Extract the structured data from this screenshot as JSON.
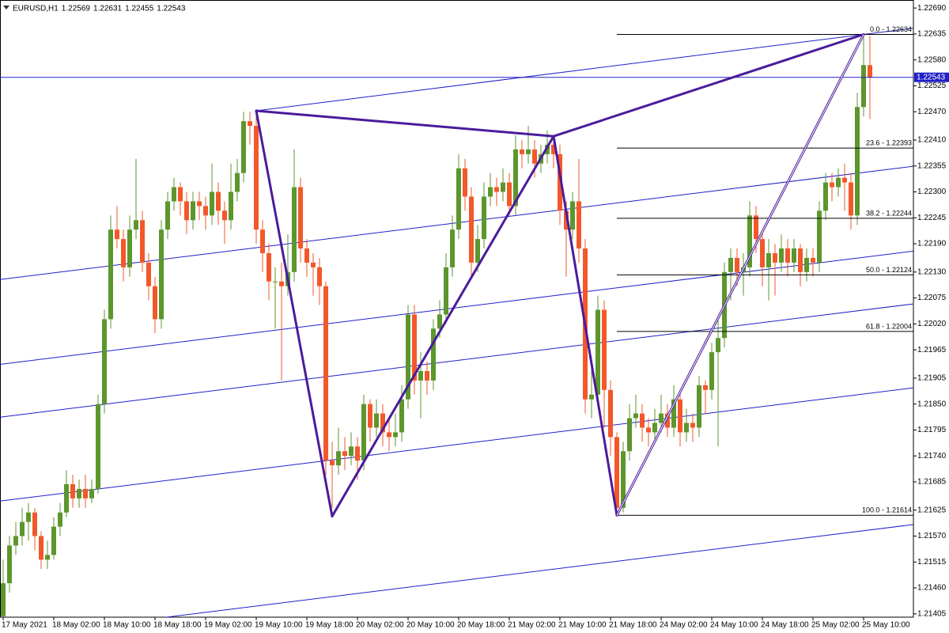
{
  "chart_data": {
    "type": "candlestick",
    "symbol": "EURUSD,H1",
    "colors": {
      "up": "#5c962c",
      "down": "#f2582a",
      "pattern": "#4b1b9c",
      "channel": "#2020c8",
      "price_line": "#2020c8",
      "fibonacci": "#000000"
    },
    "ylim": [
      1.21398,
      1.22707
    ],
    "yticks": [
      {
        "value": 1.2269,
        "label": "1.22690"
      },
      1.22635,
      {
        "value": 1.2258,
        "label": "1.22580"
      },
      1.22525,
      {
        "value": 1.2247,
        "label": "1.22470"
      },
      {
        "value": 1.2241,
        "label": "1.22410"
      },
      1.22355,
      {
        "value": 1.223,
        "label": "1.22300"
      },
      1.22245,
      {
        "value": 1.2219,
        "label": "1.22190"
      },
      {
        "value": 1.2213,
        "label": "1.22130"
      },
      1.22075,
      {
        "value": 1.2202,
        "label": "1.22020"
      },
      1.21965,
      1.21905,
      {
        "value": 1.2185,
        "label": "1.21850"
      },
      1.21795,
      {
        "value": 1.2174,
        "label": "1.21740"
      },
      1.21685,
      1.21625,
      {
        "value": 1.2157,
        "label": "1.21570"
      },
      1.21515,
      {
        "value": 1.2146,
        "label": "1.21460"
      },
      1.21405
    ],
    "xlim": [
      -0.5,
      143.875
    ],
    "xticks": [
      {
        "value": 0,
        "label": "17 May 2021"
      },
      {
        "value": 8,
        "label": "18 May 02:00"
      },
      {
        "value": 16,
        "label": "18 May 10:00"
      },
      {
        "value": 24,
        "label": "18 May 18:00"
      },
      {
        "value": 32,
        "label": "19 May 02:00"
      },
      {
        "value": 40,
        "label": "19 May 10:00"
      },
      {
        "value": 48,
        "label": "19 May 18:00"
      },
      {
        "value": 56,
        "label": "20 May 02:00"
      },
      {
        "value": 64,
        "label": "20 May 10:00"
      },
      {
        "value": 72,
        "label": "20 May 18:00"
      },
      {
        "value": 80,
        "label": "21 May 02:00"
      },
      {
        "value": 88,
        "label": "21 May 10:00"
      },
      {
        "value": 96,
        "label": "21 May 18:00"
      },
      {
        "value": 104,
        "label": "24 May 02:00"
      },
      {
        "value": 112,
        "label": "24 May 10:00"
      },
      {
        "value": 120,
        "label": "24 May 18:00"
      },
      {
        "value": 128,
        "label": "25 May 02:00"
      },
      {
        "value": 136,
        "label": "25 May 10:00"
      }
    ],
    "candles": [
      [
        1.214,
        1.2152,
        1.2138,
        1.2147
      ],
      [
        1.2147,
        1.2157,
        1.2145,
        1.2155
      ],
      [
        1.2155,
        1.216,
        1.2153,
        1.2157
      ],
      [
        1.2157,
        1.2163,
        1.2155,
        1.216
      ],
      [
        1.216,
        1.2164,
        1.2156,
        1.2162
      ],
      [
        1.2162,
        1.2163,
        1.2154,
        1.2157
      ],
      [
        1.2157,
        1.2158,
        1.215,
        1.2152
      ],
      [
        1.2152,
        1.2156,
        1.215,
        1.2153
      ],
      [
        1.2153,
        1.2161,
        1.2152,
        1.2159
      ],
      [
        1.2159,
        1.2164,
        1.2157,
        1.2162
      ],
      [
        1.2162,
        1.2171,
        1.2161,
        1.2168
      ],
      [
        1.2168,
        1.217,
        1.2163,
        1.2165
      ],
      [
        1.2165,
        1.2169,
        1.2163,
        1.2167
      ],
      [
        1.2167,
        1.217,
        1.2163,
        1.2165
      ],
      [
        1.2165,
        1.2169,
        1.2164,
        1.2167
      ],
      [
        1.2167,
        1.2187,
        1.2166,
        1.2185
      ],
      [
        1.2185,
        1.2205,
        1.2183,
        1.2203
      ],
      [
        1.2203,
        1.2225,
        1.2201,
        1.2222
      ],
      [
        1.2222,
        1.2227,
        1.2218,
        1.222
      ],
      [
        1.222,
        1.2222,
        1.2211,
        1.2214
      ],
      [
        1.2214,
        1.2225,
        1.2212,
        1.2222
      ],
      [
        1.2222,
        1.2237,
        1.222,
        1.2224
      ],
      [
        1.2224,
        1.2226,
        1.2213,
        1.2215
      ],
      [
        1.2215,
        1.2217,
        1.2207,
        1.221
      ],
      [
        1.221,
        1.2212,
        1.22,
        1.2203
      ],
      [
        1.2203,
        1.2224,
        1.2201,
        1.2222
      ],
      [
        1.2222,
        1.223,
        1.222,
        1.2228
      ],
      [
        1.2228,
        1.2233,
        1.2226,
        1.2231
      ],
      [
        1.2231,
        1.2232,
        1.2225,
        1.2228
      ],
      [
        1.2228,
        1.223,
        1.2221,
        1.2224
      ],
      [
        1.2224,
        1.223,
        1.2222,
        1.2228
      ],
      [
        1.2228,
        1.223,
        1.2224,
        1.2227
      ],
      [
        1.2227,
        1.2229,
        1.2222,
        1.2225
      ],
      [
        1.2225,
        1.2236,
        1.2223,
        1.223
      ],
      [
        1.223,
        1.2232,
        1.2223,
        1.2226
      ],
      [
        1.2226,
        1.2228,
        1.2219,
        1.2224
      ],
      [
        1.2224,
        1.2236,
        1.2222,
        1.223
      ],
      [
        1.223,
        1.2237,
        1.2228,
        1.2234
      ],
      [
        1.2234,
        1.2247,
        1.2232,
        1.2245
      ],
      [
        1.2245,
        1.2247,
        1.224,
        1.2244
      ],
      [
        1.2244,
        1.2247,
        1.2219,
        1.2222
      ],
      [
        1.2222,
        1.2224,
        1.2213,
        1.2217
      ],
      [
        1.2217,
        1.2219,
        1.2207,
        1.2211
      ],
      [
        1.2211,
        1.2214,
        1.2201,
        1.2211
      ],
      [
        1.2211,
        1.2215,
        1.219,
        1.221
      ],
      [
        1.221,
        1.2221,
        1.2208,
        1.2213
      ],
      [
        1.2213,
        1.2239,
        1.2211,
        1.2231
      ],
      [
        1.2231,
        1.2233,
        1.2215,
        1.2218
      ],
      [
        1.2218,
        1.222,
        1.2212,
        1.2215
      ],
      [
        1.2215,
        1.2217,
        1.2208,
        1.2214
      ],
      [
        1.2214,
        1.2216,
        1.2206,
        1.221
      ],
      [
        1.221,
        1.2211,
        1.217,
        1.2173
      ],
      [
        1.2173,
        1.2177,
        1.2163,
        1.2172
      ],
      [
        1.2172,
        1.218,
        1.217,
        1.2175
      ],
      [
        1.2175,
        1.2178,
        1.2171,
        1.2174
      ],
      [
        1.2174,
        1.2179,
        1.2172,
        1.2176
      ],
      [
        1.2176,
        1.2178,
        1.2169,
        1.2173
      ],
      [
        1.2173,
        1.2187,
        1.2171,
        1.2185
      ],
      [
        1.2185,
        1.2186,
        1.2177,
        1.218
      ],
      [
        1.218,
        1.2186,
        1.2178,
        1.2183
      ],
      [
        1.2183,
        1.2185,
        1.2176,
        1.2179
      ],
      [
        1.2179,
        1.2182,
        1.2175,
        1.2178
      ],
      [
        1.2178,
        1.2183,
        1.2176,
        1.2179
      ],
      [
        1.2179,
        1.2189,
        1.2177,
        1.2186
      ],
      [
        1.2186,
        1.2206,
        1.2184,
        1.2204
      ],
      [
        1.2204,
        1.2206,
        1.2187,
        1.219
      ],
      [
        1.219,
        1.2196,
        1.2182,
        1.2192
      ],
      [
        1.2192,
        1.2194,
        1.2187,
        1.219
      ],
      [
        1.219,
        1.2203,
        1.2188,
        1.2201
      ],
      [
        1.2201,
        1.2207,
        1.2199,
        1.2204
      ],
      [
        1.2204,
        1.2217,
        1.2202,
        1.2214
      ],
      [
        1.2214,
        1.2225,
        1.2212,
        1.2222
      ],
      [
        1.2222,
        1.2238,
        1.222,
        1.2235
      ],
      [
        1.2235,
        1.2237,
        1.2226,
        1.2229
      ],
      [
        1.2229,
        1.2231,
        1.2212,
        1.2215
      ],
      [
        1.2215,
        1.2223,
        1.2213,
        1.222
      ],
      [
        1.222,
        1.2232,
        1.2218,
        1.2229
      ],
      [
        1.2229,
        1.2234,
        1.2227,
        1.2231
      ],
      [
        1.2231,
        1.2233,
        1.2227,
        1.223
      ],
      [
        1.223,
        1.2235,
        1.2228,
        1.2232
      ],
      [
        1.2232,
        1.2234,
        1.2225,
        1.2227
      ],
      [
        1.2227,
        1.2242,
        1.2225,
        1.2239
      ],
      [
        1.2239,
        1.2241,
        1.2235,
        1.2238
      ],
      [
        1.2238,
        1.2244,
        1.2236,
        1.2239
      ],
      [
        1.2239,
        1.2241,
        1.2233,
        1.2236
      ],
      [
        1.2236,
        1.224,
        1.2234,
        1.2238
      ],
      [
        1.2238,
        1.2243,
        1.2236,
        1.224
      ],
      [
        1.224,
        1.2242,
        1.2235,
        1.2238
      ],
      [
        1.2238,
        1.224,
        1.2223,
        1.2226
      ],
      [
        1.2226,
        1.2228,
        1.2212,
        1.2222
      ],
      [
        1.2222,
        1.223,
        1.222,
        1.2228
      ],
      [
        1.2228,
        1.2237,
        1.2215,
        1.2218
      ],
      [
        1.2218,
        1.222,
        1.2183,
        1.2186
      ],
      [
        1.2186,
        1.2195,
        1.2182,
        1.2187
      ],
      [
        1.2187,
        1.2208,
        1.2185,
        1.2205
      ],
      [
        1.2205,
        1.2207,
        1.218,
        1.2188
      ],
      [
        1.2188,
        1.219,
        1.2174,
        1.2178
      ],
      [
        1.2178,
        1.2179,
        1.21614,
        1.2163
      ],
      [
        1.2163,
        1.2177,
        1.2162,
        1.2175
      ],
      [
        1.2175,
        1.2185,
        1.2173,
        1.2182
      ],
      [
        1.2182,
        1.2187,
        1.218,
        1.2183
      ],
      [
        1.2183,
        1.2185,
        1.2177,
        1.218
      ],
      [
        1.218,
        1.2182,
        1.2176,
        1.2179
      ],
      [
        1.2179,
        1.2184,
        1.2177,
        1.2181
      ],
      [
        1.2181,
        1.2187,
        1.2179,
        1.2183
      ],
      [
        1.2183,
        1.2185,
        1.2178,
        1.218
      ],
      [
        1.218,
        1.2189,
        1.2178,
        1.2186
      ],
      [
        1.2186,
        1.2188,
        1.2176,
        1.2179
      ],
      [
        1.2179,
        1.2184,
        1.2177,
        1.2181
      ],
      [
        1.2181,
        1.2183,
        1.2177,
        1.218
      ],
      [
        1.218,
        1.2191,
        1.2178,
        1.2189
      ],
      [
        1.2189,
        1.219,
        1.2183,
        1.2188
      ],
      [
        1.2188,
        1.2198,
        1.2186,
        1.2196
      ],
      [
        1.2196,
        1.2203,
        1.2176,
        1.2199
      ],
      [
        1.2199,
        1.2215,
        1.2197,
        1.2213
      ],
      [
        1.2213,
        1.2218,
        1.2207,
        1.2216
      ],
      [
        1.2216,
        1.2218,
        1.221,
        1.2213
      ],
      [
        1.2213,
        1.2217,
        1.2208,
        1.2214
      ],
      [
        1.2214,
        1.2228,
        1.2212,
        1.2225
      ],
      [
        1.2225,
        1.2227,
        1.2217,
        1.222
      ],
      [
        1.222,
        1.2222,
        1.221,
        1.2214
      ],
      [
        1.2214,
        1.222,
        1.2207,
        1.2217
      ],
      [
        1.2217,
        1.2219,
        1.2208,
        1.2215
      ],
      [
        1.2215,
        1.2221,
        1.2213,
        1.2218
      ],
      [
        1.2218,
        1.222,
        1.2212,
        1.2215
      ],
      [
        1.2215,
        1.222,
        1.2213,
        1.2218
      ],
      [
        1.2218,
        1.2219,
        1.221,
        1.2213
      ],
      [
        1.2213,
        1.2218,
        1.2211,
        1.2216
      ],
      [
        1.2216,
        1.2218,
        1.2212,
        1.2215
      ],
      [
        1.2215,
        1.2228,
        1.2213,
        1.2226
      ],
      [
        1.2226,
        1.2234,
        1.2224,
        1.2232
      ],
      [
        1.2232,
        1.2234,
        1.2228,
        1.2231
      ],
      [
        1.2231,
        1.2235,
        1.2229,
        1.2233
      ],
      [
        1.2233,
        1.2236,
        1.2226,
        1.2232
      ],
      [
        1.2232,
        1.2234,
        1.2222,
        1.2225
      ],
      [
        1.2225,
        1.2251,
        1.2223,
        1.2248
      ],
      [
        1.2248,
        1.22634,
        1.2246,
        1.22569
      ],
      [
        1.22569,
        1.22631,
        1.22455,
        1.22543
      ]
    ],
    "fibonacci": {
      "start_candle": 97,
      "levels": [
        {
          "value": 1.22634,
          "label": "0.0 - 1.22634"
        },
        {
          "value": 1.22393,
          "label": "23.6 - 1.22393"
        },
        {
          "value": 1.22244,
          "label": "38.2 - 1.22244"
        },
        {
          "value": 1.22124,
          "label": "50.0 - 1.22124"
        },
        {
          "value": 1.22004,
          "label": "61.8 - 1.22004"
        },
        {
          "value": 1.21614,
          "label": "100.0 - 1.21614"
        }
      ]
    },
    "pattern": {
      "points": [
        {
          "candle": 40,
          "price": 1.22472
        },
        {
          "candle": 52,
          "price": 1.21612
        },
        {
          "candle": 87,
          "price": 1.22418
        },
        {
          "candle": 97,
          "price": 1.21614
        },
        {
          "candle": 136,
          "price": 1.22634
        }
      ],
      "thick_legs": [
        [
          0,
          1
        ],
        [
          1,
          2
        ],
        [
          2,
          3
        ],
        [
          0,
          2
        ],
        [
          2,
          4
        ]
      ],
      "thin_legs": [
        [
          3,
          4
        ]
      ]
    },
    "channel": [
      [
        {
          "candle": 40,
          "price": 1.22472
        },
        {
          "candle": 136,
          "price": 1.22634
        }
      ],
      [
        {
          "candle": 0,
          "price": 1.22115
        },
        {
          "candle": 137,
          "price": 1.22343
        }
      ],
      [
        {
          "candle": 0,
          "price": 1.21935
        },
        {
          "candle": 137,
          "price": 1.22163
        }
      ],
      [
        {
          "candle": 0,
          "price": 1.21823
        },
        {
          "candle": 137,
          "price": 1.22051
        }
      ],
      [
        {
          "candle": 0,
          "price": 1.21645
        },
        {
          "candle": 137,
          "price": 1.21873
        }
      ],
      [
        {
          "candle": 0,
          "price": 1.21355
        },
        {
          "candle": 137,
          "price": 1.21583
        }
      ]
    ]
  }
}
